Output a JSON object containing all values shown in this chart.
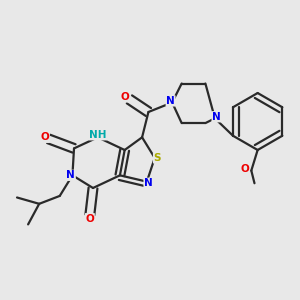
{
  "background_color": "#e8e8e8",
  "bond_color": "#2a2a2a",
  "atom_colors": {
    "N": "#0000ee",
    "O": "#ee0000",
    "S": "#aaaa00",
    "NH": "#00aaaa",
    "C": "#2a2a2a"
  },
  "figsize": [
    3.0,
    3.0
  ],
  "dpi": 100
}
